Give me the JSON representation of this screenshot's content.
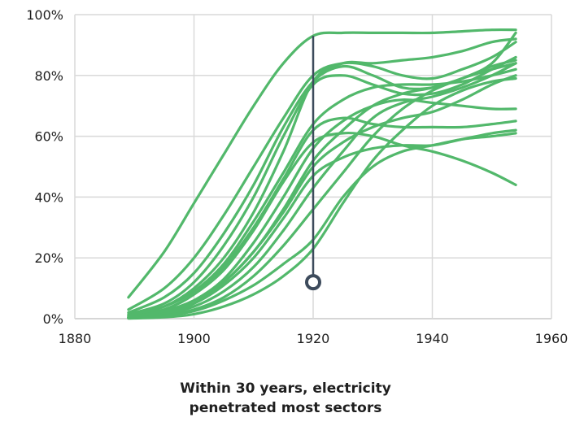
{
  "chart_data": {
    "type": "line",
    "title": "",
    "xlabel": "",
    "ylabel": "",
    "xlim": [
      1880,
      1960
    ],
    "ylim": [
      0,
      100
    ],
    "x_ticks": [
      "1880",
      "1900",
      "1920",
      "1940",
      "1960"
    ],
    "y_ticks": [
      "0%",
      "20%",
      "40%",
      "60%",
      "80%",
      "100%"
    ],
    "grid": true,
    "legend": "none",
    "line_color": "#52b86b",
    "marker": {
      "x": 1920,
      "y_from": 12,
      "y_to": 93,
      "color": "#3d4b5c"
    },
    "caption": [
      "Within 30 years, electricity",
      "penetrated most sectors"
    ],
    "series": [
      {
        "x": [
          1889,
          1895,
          1900,
          1905,
          1910,
          1915,
          1920,
          1925,
          1930,
          1935,
          1940,
          1945,
          1950,
          1954
        ],
        "values": [
          7,
          22,
          38,
          54,
          70,
          84,
          93,
          94,
          94,
          94,
          94,
          94.5,
          95,
          95
        ]
      },
      {
        "x": [
          1889,
          1895,
          1900,
          1905,
          1910,
          1915,
          1920,
          1925,
          1930,
          1935,
          1940,
          1945,
          1950,
          1954
        ],
        "values": [
          3,
          10,
          20,
          34,
          50,
          66,
          80,
          84,
          83,
          80,
          79,
          82,
          86,
          91
        ]
      },
      {
        "x": [
          1889,
          1895,
          1900,
          1905,
          1910,
          1915,
          1920,
          1925,
          1930,
          1935,
          1940,
          1945,
          1950,
          1954
        ],
        "values": [
          2,
          7,
          15,
          28,
          44,
          63,
          78,
          83,
          80,
          76,
          76,
          79,
          84,
          94
        ]
      },
      {
        "x": [
          1889,
          1895,
          1900,
          1905,
          1910,
          1915,
          1920,
          1925,
          1930,
          1935,
          1940,
          1945,
          1950,
          1954
        ],
        "values": [
          1.5,
          5,
          12,
          24,
          40,
          60,
          77,
          80,
          77,
          74,
          74,
          77,
          82,
          86
        ]
      },
      {
        "x": [
          1889,
          1895,
          1900,
          1905,
          1910,
          1915,
          1920,
          1925,
          1930,
          1935,
          1940,
          1945,
          1950,
          1954
        ],
        "values": [
          1,
          4,
          10,
          20,
          35,
          55,
          78,
          84,
          84,
          85,
          86,
          88,
          91,
          92
        ]
      },
      {
        "x": [
          1889,
          1895,
          1900,
          1905,
          1910,
          1915,
          1920,
          1925,
          1930,
          1935,
          1940,
          1945,
          1950,
          1954
        ],
        "values": [
          1,
          3,
          8,
          17,
          30,
          46,
          62,
          66,
          64,
          63,
          63,
          63,
          64,
          65
        ]
      },
      {
        "x": [
          1889,
          1895,
          1900,
          1905,
          1910,
          1915,
          1920,
          1925,
          1930,
          1935,
          1940,
          1945,
          1950,
          1954
        ],
        "values": [
          0.5,
          3,
          8,
          16,
          29,
          45,
          58,
          61,
          60,
          57,
          55,
          52,
          48,
          44
        ]
      },
      {
        "x": [
          1889,
          1895,
          1900,
          1905,
          1910,
          1915,
          1920,
          1925,
          1930,
          1935,
          1940,
          1945,
          1950,
          1954
        ],
        "values": [
          0.5,
          2,
          6,
          13,
          25,
          40,
          56,
          65,
          70,
          72,
          71,
          70,
          69,
          69
        ]
      },
      {
        "x": [
          1889,
          1895,
          1900,
          1905,
          1910,
          1915,
          1920,
          1925,
          1930,
          1935,
          1940,
          1945,
          1950,
          1954
        ],
        "values": [
          0.5,
          2,
          5,
          12,
          22,
          36,
          52,
          62,
          70,
          74,
          76,
          79,
          83,
          85
        ]
      },
      {
        "x": [
          1889,
          1895,
          1900,
          1905,
          1910,
          1915,
          1920,
          1925,
          1930,
          1935,
          1940,
          1945,
          1950,
          1954
        ],
        "values": [
          0.3,
          2,
          5,
          11,
          20,
          33,
          47,
          53,
          56,
          57,
          57,
          59,
          61,
          62
        ]
      },
      {
        "x": [
          1889,
          1895,
          1900,
          1905,
          1910,
          1915,
          1920,
          1925,
          1930,
          1935,
          1940,
          1945,
          1950,
          1954
        ],
        "values": [
          0.3,
          1.5,
          4,
          9,
          17,
          29,
          43,
          55,
          66,
          71,
          73,
          76,
          80,
          84
        ]
      },
      {
        "x": [
          1889,
          1895,
          1900,
          1905,
          1910,
          1915,
          1920,
          1925,
          1930,
          1935,
          1940,
          1945,
          1950,
          1954
        ],
        "values": [
          0.2,
          1,
          3,
          7,
          14,
          24,
          36,
          48,
          60,
          69,
          75,
          79,
          82,
          84
        ]
      },
      {
        "x": [
          1889,
          1895,
          1900,
          1905,
          1910,
          1915,
          1920,
          1925,
          1930,
          1935,
          1940,
          1945,
          1950,
          1954
        ],
        "values": [
          0.2,
          1,
          2.5,
          6,
          11,
          18,
          26,
          40,
          50,
          55,
          57,
          59,
          60,
          61
        ]
      },
      {
        "x": [
          1889,
          1895,
          1900,
          1905,
          1910,
          1915,
          1920,
          1925,
          1930,
          1935,
          1940,
          1945,
          1950,
          1954
        ],
        "values": [
          0.1,
          0.5,
          1.5,
          4,
          8,
          14,
          23,
          38,
          52,
          62,
          70,
          75,
          78,
          79
        ]
      },
      {
        "x": [
          1889,
          1895,
          1900,
          1905,
          1910,
          1915,
          1920,
          1925,
          1930,
          1935,
          1940,
          1945,
          1950,
          1954
        ],
        "values": [
          1,
          4,
          9,
          18,
          32,
          48,
          64,
          72,
          76,
          77,
          77,
          78,
          80,
          82
        ]
      },
      {
        "x": [
          1889,
          1895,
          1900,
          1905,
          1910,
          1915,
          1920,
          1925,
          1930,
          1935,
          1940,
          1945,
          1950,
          1954
        ],
        "values": [
          0.5,
          2.5,
          6,
          12,
          22,
          35,
          50,
          58,
          63,
          66,
          68,
          72,
          77,
          80
        ]
      }
    ]
  }
}
